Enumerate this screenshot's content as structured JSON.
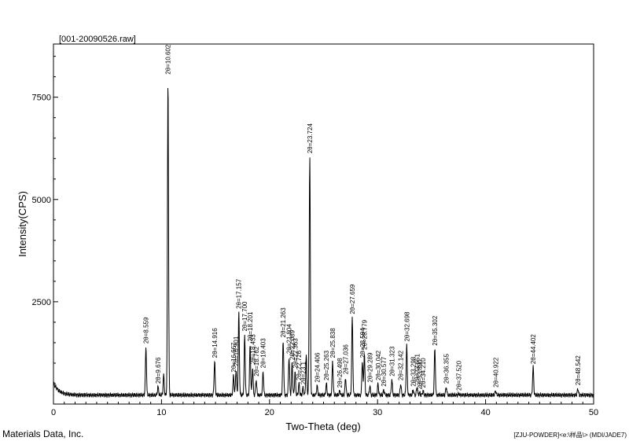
{
  "header": {
    "file_title": "[001-20090526.raw]"
  },
  "footer": {
    "left_text": "Materials Data, Inc.",
    "right_text": "[ZJU-POWDER]<e:\\样品\\> (MDI/JADE7)"
  },
  "chart_data": {
    "type": "line",
    "title": "",
    "xlabel": "Two-Theta (deg)",
    "ylabel": "Intensity(CPS)",
    "xlim": [
      0,
      50
    ],
    "ylim": [
      0,
      8800
    ],
    "x_ticks": [
      0,
      10,
      20,
      30,
      40,
      50
    ],
    "y_ticks": [
      2500,
      5000,
      7500
    ],
    "grid": false,
    "baseline": 220,
    "series": [
      {
        "peaks": [
          {
            "x": 8.559,
            "y": 1400,
            "label": "2θ=8.559"
          },
          {
            "x": 9.676,
            "y": 420,
            "label": "2θ=9.676"
          },
          {
            "x": 10.2,
            "y": 700,
            "label": ""
          },
          {
            "x": 10.602,
            "y": 7980,
            "label": "2θ=10.602"
          },
          {
            "x": 14.916,
            "y": 1050,
            "label": "2θ=14.916"
          },
          {
            "x": 16.667,
            "y": 700,
            "label": "2θ=16.667"
          },
          {
            "x": 16.901,
            "y": 850,
            "label": "2θ=16.901"
          },
          {
            "x": 17.157,
            "y": 2250,
            "label": "2θ=17.157"
          },
          {
            "x": 17.7,
            "y": 1700,
            "label": "2θ=17.700"
          },
          {
            "x": 18.201,
            "y": 1450,
            "label": "2θ=18.201"
          },
          {
            "x": 18.433,
            "y": 900,
            "label": "2θ=18.433"
          },
          {
            "x": 18.762,
            "y": 600,
            "label": "2θ=18.762"
          },
          {
            "x": 19.403,
            "y": 800,
            "label": "2θ=19.403"
          },
          {
            "x": 21.263,
            "y": 1550,
            "label": "2θ=21.263"
          },
          {
            "x": 21.804,
            "y": 1150,
            "label": "2θ=21.804"
          },
          {
            "x": 22.089,
            "y": 1000,
            "label": "2θ=22.089"
          },
          {
            "x": 22.363,
            "y": 800,
            "label": "2θ=22.363"
          },
          {
            "x": 22.726,
            "y": 500,
            "label": "2θ=22.726"
          },
          {
            "x": 23.1,
            "y": 400,
            "label": "2θ=23.1"
          },
          {
            "x": 23.4,
            "y": 1200,
            "label": ""
          },
          {
            "x": 23.724,
            "y": 6050,
            "label": "2θ=23.724"
          },
          {
            "x": 24.406,
            "y": 450,
            "label": "2θ=24.406"
          },
          {
            "x": 25.263,
            "y": 500,
            "label": "2θ=25.263"
          },
          {
            "x": 25.838,
            "y": 1050,
            "label": "2θ=25.838"
          },
          {
            "x": 26.498,
            "y": 320,
            "label": "2θ=26.498"
          },
          {
            "x": 27.036,
            "y": 650,
            "label": "2θ=27.036"
          },
          {
            "x": 27.659,
            "y": 2120,
            "label": "2θ=27.659"
          },
          {
            "x": 28.594,
            "y": 1050,
            "label": "2θ=28.594"
          },
          {
            "x": 28.779,
            "y": 1250,
            "label": "2θ=28.779"
          },
          {
            "x": 29.289,
            "y": 450,
            "label": "2θ=29.289"
          },
          {
            "x": 30.042,
            "y": 500,
            "label": "2θ=30.042"
          },
          {
            "x": 30.577,
            "y": 350,
            "label": "2θ=30.577"
          },
          {
            "x": 31.323,
            "y": 600,
            "label": "2θ=31.323"
          },
          {
            "x": 32.142,
            "y": 500,
            "label": "2θ=32.142"
          },
          {
            "x": 32.698,
            "y": 1450,
            "label": "2θ=32.698"
          },
          {
            "x": 33.298,
            "y": 350,
            "label": "2θ=33.298"
          },
          {
            "x": 33.651,
            "y": 420,
            "label": "2θ=33.651"
          },
          {
            "x": 33.89,
            "y": 280,
            "label": "2θ=33.890"
          },
          {
            "x": 34.21,
            "y": 320,
            "label": "2θ=34.210"
          },
          {
            "x": 35.302,
            "y": 1350,
            "label": "2θ=35.302"
          },
          {
            "x": 36.355,
            "y": 420,
            "label": "2θ=36.355"
          },
          {
            "x": 37.52,
            "y": 250,
            "label": "2θ=37.520"
          },
          {
            "x": 40.922,
            "y": 330,
            "label": "2θ=40.922"
          },
          {
            "x": 44.402,
            "y": 900,
            "label": "2θ=44.402"
          },
          {
            "x": 48.542,
            "y": 380,
            "label": "2θ=48.542"
          }
        ]
      }
    ]
  }
}
